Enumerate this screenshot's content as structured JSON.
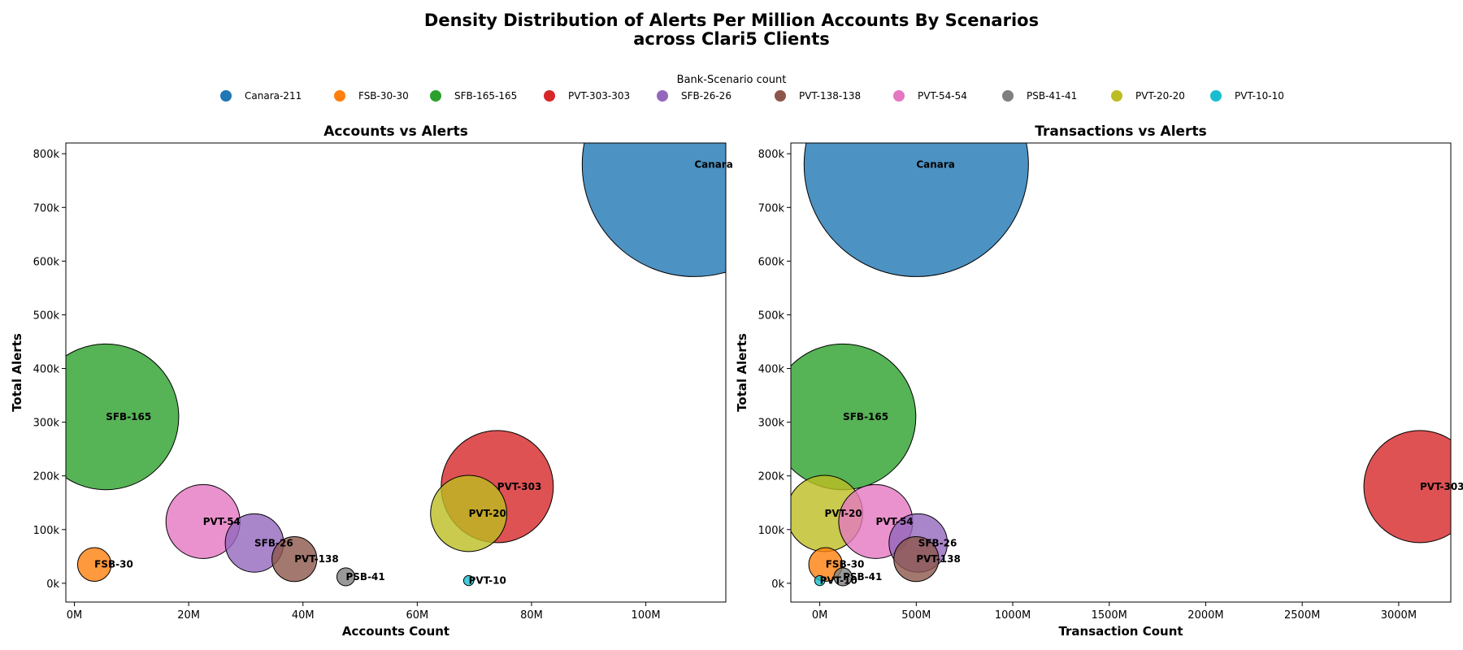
{
  "chart_data": {
    "type": "scatter",
    "title": "Density Distribution of Alerts Per Million Accounts By Scenarios",
    "subtitle": "across Clari5 Clients",
    "legend": {
      "title": "Bank-Scenario count",
      "placement": "top-center",
      "entries": [
        "Canara-211",
        "FSB-30-30",
        "SFB-165-165",
        "PVT-303-303",
        "SFB-26-26",
        "PVT-138-138",
        "PVT-54-54",
        "PSB-41-41",
        "PVT-20-20",
        "PVT-10-10"
      ]
    },
    "series": [
      {
        "label": "Canara",
        "color": "#1f77b4",
        "accounts": 108.5,
        "transactions": 500,
        "alerts": 780,
        "size": 1.0
      },
      {
        "label": "FSB-30",
        "color": "#ff7f0e",
        "accounts": 3.5,
        "transactions": 30,
        "alerts": 35,
        "size": 0.15
      },
      {
        "label": "SFB-165",
        "color": "#2ca02c",
        "accounts": 5.5,
        "transactions": 120,
        "alerts": 310,
        "size": 0.65
      },
      {
        "label": "PVT-303",
        "color": "#d62728",
        "accounts": 74,
        "transactions": 3110,
        "alerts": 180,
        "size": 0.5
      },
      {
        "label": "SFB-26",
        "color": "#9467bd",
        "accounts": 31.5,
        "transactions": 510,
        "alerts": 75,
        "size": 0.26
      },
      {
        "label": "PVT-138",
        "color": "#8c564b",
        "accounts": 38.5,
        "transactions": 500,
        "alerts": 45,
        "size": 0.2
      },
      {
        "label": "PVT-54",
        "color": "#e377c2",
        "accounts": 22.5,
        "transactions": 290,
        "alerts": 115,
        "size": 0.33
      },
      {
        "label": "PSB-41",
        "color": "#7f7f7f",
        "accounts": 47.5,
        "transactions": 120,
        "alerts": 12,
        "size": 0.08
      },
      {
        "label": "PVT-20",
        "color": "#bcbd22",
        "accounts": 69,
        "transactions": 25,
        "alerts": 130,
        "size": 0.34
      },
      {
        "label": "PVT-10",
        "color": "#17becf",
        "accounts": 69,
        "transactions": 0,
        "alerts": 5,
        "size": 0.045
      }
    ],
    "subplots": [
      {
        "title": "Accounts vs Alerts",
        "xlabel": "Accounts Count",
        "ylabel": "Total Alerts",
        "x_field": "accounts",
        "xlim": [
          -1.5,
          114
        ],
        "ylim": [
          -35,
          820
        ],
        "xticks": [
          0,
          20,
          40,
          60,
          80,
          100
        ],
        "xtick_labels": [
          "0M",
          "20M",
          "40M",
          "60M",
          "80M",
          "100M"
        ],
        "yticks": [
          0,
          100,
          200,
          300,
          400,
          500,
          600,
          700,
          800
        ],
        "ytick_labels": [
          "0k",
          "100k",
          "200k",
          "300k",
          "400k",
          "500k",
          "600k",
          "700k",
          "800k"
        ]
      },
      {
        "title": "Transactions vs Alerts",
        "xlabel": "Transaction Count",
        "ylabel": "Total Alerts",
        "x_field": "transactions",
        "xlim": [
          -150,
          3270
        ],
        "ylim": [
          -35,
          820
        ],
        "xticks": [
          0,
          500,
          1000,
          1500,
          2000,
          2500,
          3000
        ],
        "xtick_labels": [
          "0M",
          "500M",
          "1000M",
          "1500M",
          "2000M",
          "2500M",
          "3000M"
        ],
        "yticks": [
          0,
          100,
          200,
          300,
          400,
          500,
          600,
          700,
          800
        ],
        "ytick_labels": [
          "0k",
          "100k",
          "200k",
          "300k",
          "400k",
          "500k",
          "600k",
          "700k",
          "800k"
        ]
      }
    ]
  }
}
